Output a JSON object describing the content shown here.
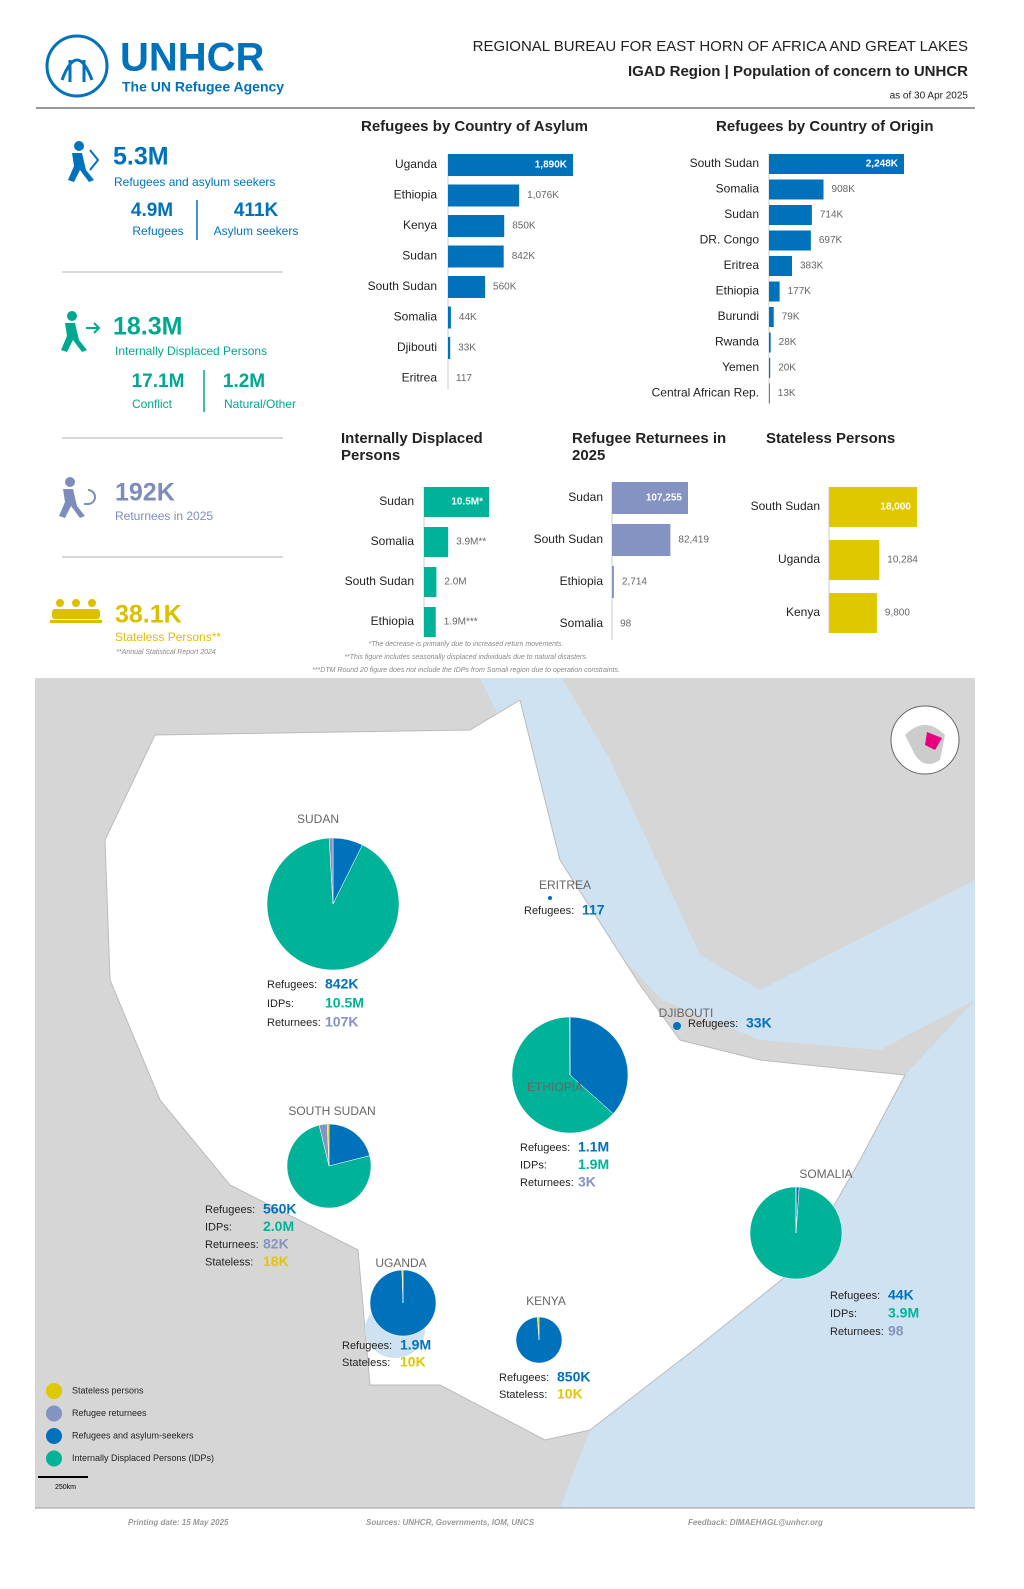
{
  "header": {
    "logo_name": "UNHCR",
    "logo_tagline": "The UN Refugee Agency",
    "bureau": "REGIONAL BUREAU FOR EAST HORN OF AFRICA AND GREAT LAKES",
    "title": "IGAD Region | Population of concern to UNHCR",
    "date": "as of 30 Apr 2025"
  },
  "kpis": [
    {
      "value": "5.3M",
      "label": "Refugees and asylum seekers",
      "color": "#0072bc",
      "breakdown": [
        {
          "value": "4.9M",
          "label": "Refugees"
        },
        {
          "value": "411K",
          "label": "Asylum seekers"
        }
      ]
    },
    {
      "value": "18.3M",
      "label": "Internally Displaced Persons",
      "color": "#00a88f",
      "breakdown": [
        {
          "value": "17.1M",
          "label": "Conflict"
        },
        {
          "value": "1.2M",
          "label": "Natural/Other"
        }
      ]
    },
    {
      "value": "192K",
      "label": "Returnees in 2025",
      "color": "#7d8dbb"
    },
    {
      "value": "38.1K",
      "label": "Stateless Persons**",
      "color": "#dcc000",
      "note": "**Annual Statistical Report 2024"
    }
  ],
  "chart_data": [
    {
      "type": "bar",
      "title": "Refugees by Country of Asylum",
      "color": "#0072bc",
      "categories": [
        "Uganda",
        "Ethiopia",
        "Kenya",
        "Sudan",
        "South Sudan",
        "Somalia",
        "Djibouti",
        "Eritrea"
      ],
      "values": [
        1890000,
        1076000,
        850000,
        842000,
        560000,
        44000,
        33000,
        117
      ],
      "value_labels": [
        "1,890K",
        "1,076K",
        "850K",
        "842K",
        "560K",
        "44K",
        "33K",
        "117"
      ]
    },
    {
      "type": "bar",
      "title": "Refugees by Country of Origin",
      "color": "#0072bc",
      "categories": [
        "South Sudan",
        "Somalia",
        "Sudan",
        "DR. Congo",
        "Eritrea",
        "Ethiopia",
        "Burundi",
        "Rwanda",
        "Yemen",
        "Central African Rep."
      ],
      "values": [
        2248000,
        908000,
        714000,
        697000,
        383000,
        177000,
        79000,
        28000,
        20000,
        13000
      ],
      "value_labels": [
        "2,248K",
        "908K",
        "714K",
        "697K",
        "383K",
        "177K",
        "79K",
        "28K",
        "20K",
        "13K"
      ]
    },
    {
      "type": "bar",
      "title": "Internally Displaced Persons",
      "color": "#00b398",
      "categories": [
        "Sudan",
        "Somalia",
        "South Sudan",
        "Ethiopia"
      ],
      "values": [
        10500000,
        3900000,
        2000000,
        1900000
      ],
      "value_labels": [
        "10.5M*",
        "3.9M**",
        "2.0M",
        "1.9M***"
      ]
    },
    {
      "type": "bar",
      "title": "Refugee Returnees in 2025",
      "color": "#8493c2",
      "categories": [
        "Sudan",
        "South Sudan",
        "Ethiopia",
        "Somalia"
      ],
      "values": [
        107255,
        82419,
        2714,
        98
      ],
      "value_labels": [
        "107,255",
        "82,419",
        "2,714",
        "98"
      ]
    },
    {
      "type": "bar",
      "title": "Stateless Persons",
      "color": "#e0c800",
      "categories": [
        "South Sudan",
        "Uganda",
        "Kenya"
      ],
      "values": [
        18000,
        10284,
        9800
      ],
      "value_labels": [
        "18,000",
        "10,284",
        "9,800"
      ]
    }
  ],
  "footnotes": [
    "*The decrease is primarily due to increased return movements.",
    "**This figure includes seasonally displaced individuals due to natural disasters.",
    "***DTM Round 20 figure does not include the IDPs from Somali region due to operation constraints."
  ],
  "map": {
    "countries": [
      {
        "name": "SUDAN",
        "stats": [
          {
            "label": "Refugees:",
            "value": 842000,
            "value_label": "842K",
            "color": "#0072bc"
          },
          {
            "label": "IDPs:",
            "value": 10500000,
            "value_label": "10.5M",
            "color": "#00b398"
          },
          {
            "label": "Returnees:",
            "value": 107000,
            "value_label": "107K",
            "color": "#8493c2"
          }
        ]
      },
      {
        "name": "ERITREA",
        "stats": [
          {
            "label": "Refugees:",
            "value": 117,
            "color": "#0072bc"
          }
        ]
      },
      {
        "name": "DJIBOUTI",
        "stats": [
          {
            "label": "Refugees:",
            "value": 33000,
            "value_label": "33K",
            "color": "#0072bc"
          }
        ]
      },
      {
        "name": "ETHIOPIA",
        "stats": [
          {
            "label": "Refugees:",
            "value": 1100000,
            "value_label": "1.1M",
            "color": "#0072bc"
          },
          {
            "label": "IDPs:",
            "value": 1900000,
            "value_label": "1.9M",
            "color": "#00b398"
          },
          {
            "label": "Returnees:",
            "value": 3000,
            "value_label": "3K",
            "color": "#8493c2"
          }
        ]
      },
      {
        "name": "SOUTH SUDAN",
        "stats": [
          {
            "label": "Refugees:",
            "value": 560000,
            "value_label": "560K",
            "color": "#0072bc"
          },
          {
            "label": "IDPs:",
            "value": 2000000,
            "value_label": "2.0M",
            "color": "#00b398"
          },
          {
            "label": "Returnees:",
            "value": 82000,
            "value_label": "82K",
            "color": "#8493c2"
          },
          {
            "label": "Stateless:",
            "value": 18000,
            "value_label": "18K",
            "color": "#e0c800"
          }
        ]
      },
      {
        "name": "SOMALIA",
        "stats": [
          {
            "label": "Refugees:",
            "value": 44000,
            "value_label": "44K",
            "color": "#0072bc"
          },
          {
            "label": "IDPs:",
            "value": 3900000,
            "value_label": "3.9M",
            "color": "#00b398"
          },
          {
            "label": "Returnees:",
            "value": 98,
            "color": "#8493c2"
          }
        ]
      },
      {
        "name": "UGANDA",
        "stats": [
          {
            "label": "Refugees:",
            "value": 1900000,
            "value_label": "1.9M",
            "color": "#0072bc"
          },
          {
            "label": "Stateless:",
            "value": 10000,
            "value_label": "10K",
            "color": "#e0c800"
          }
        ]
      },
      {
        "name": "KENYA",
        "stats": [
          {
            "label": "Refugees:",
            "value": 850000,
            "value_label": "850K",
            "color": "#0072bc"
          },
          {
            "label": "Stateless:",
            "value": 10000,
            "value_label": "10K",
            "color": "#e0c800"
          }
        ]
      }
    ],
    "legend": [
      {
        "name": "Stateless persons",
        "color": "#e0c800"
      },
      {
        "name": "Refugee returnees",
        "color": "#8493c2"
      },
      {
        "name": "Refugees and asylum-seekers",
        "color": "#0072bc"
      },
      {
        "name": "Internally Displaced Persons (IDPs)",
        "color": "#00b398"
      }
    ],
    "scale": "250km"
  },
  "footer": {
    "printing_date": "Printing date: 15 May 2025",
    "sources": "Sources: UNHCR, Governments, IOM, UNCS",
    "feedback": "Feedback: DIMAEHAGL@unhcr.org"
  }
}
